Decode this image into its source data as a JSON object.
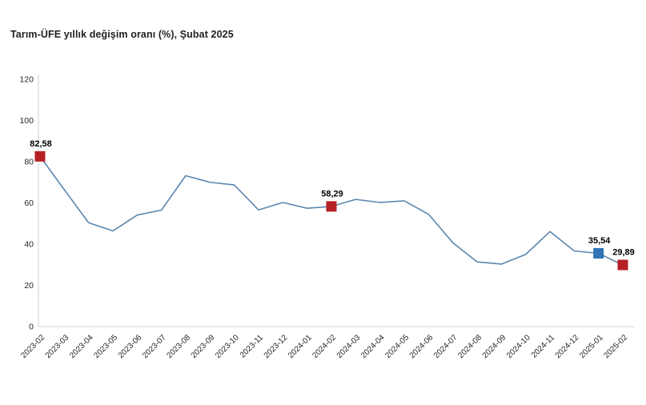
{
  "title": "Tarım-ÜFE yıllık değişim oranı (%), Şubat 2025",
  "colors": {
    "line": "#5B87B0",
    "marker_red": "#B52025",
    "marker_blue": "#2E74B5",
    "axis_line": "#D9D9D9",
    "tick_text": "#262626",
    "data_label_text": "#000000",
    "background": "#FFFFFF"
  },
  "chart_data": {
    "type": "line",
    "title": "Tarım-ÜFE yıllık değişim oranı (%), Şubat 2025",
    "xlabel": "",
    "ylabel": "",
    "ylim": [
      0,
      120
    ],
    "yticks": [
      0,
      20,
      40,
      60,
      80,
      100,
      120
    ],
    "grid": false,
    "legend": "none",
    "categories": [
      "2023-02",
      "2023-03",
      "2023-04",
      "2023-05",
      "2023-06",
      "2023-07",
      "2023-08",
      "2023-09",
      "2023-10",
      "2023-11",
      "2023-12",
      "2024-01",
      "2024-02",
      "2024-03",
      "2024-04",
      "2024-05",
      "2024-06",
      "2024-07",
      "2024-08",
      "2024-09",
      "2024-10",
      "2024-11",
      "2024-12",
      "2025-01",
      "2025-02"
    ],
    "series": [
      {
        "name": "Tarım-ÜFE yıllık değişim oranı (%)",
        "values": [
          82.58,
          66.4,
          50.4,
          46.4,
          54.1,
          56.5,
          73.2,
          70.0,
          68.7,
          56.6,
          60.2,
          57.4,
          58.29,
          61.7,
          60.2,
          61.0,
          54.5,
          40.7,
          31.4,
          30.3,
          35.0,
          46.1,
          36.7,
          35.54,
          29.89
        ]
      }
    ],
    "marked_points": [
      {
        "category": "2023-02",
        "index": 0,
        "value": 82.58,
        "label": "82,58",
        "marker_color": "#B52025"
      },
      {
        "category": "2024-02",
        "index": 12,
        "value": 58.29,
        "label": "58,29",
        "marker_color": "#B52025"
      },
      {
        "category": "2025-01",
        "index": 23,
        "value": 35.54,
        "label": "35,54",
        "marker_color": "#2E74B5"
      },
      {
        "category": "2025-02",
        "index": 24,
        "value": 29.89,
        "label": "29,89",
        "marker_color": "#B52025"
      }
    ]
  }
}
